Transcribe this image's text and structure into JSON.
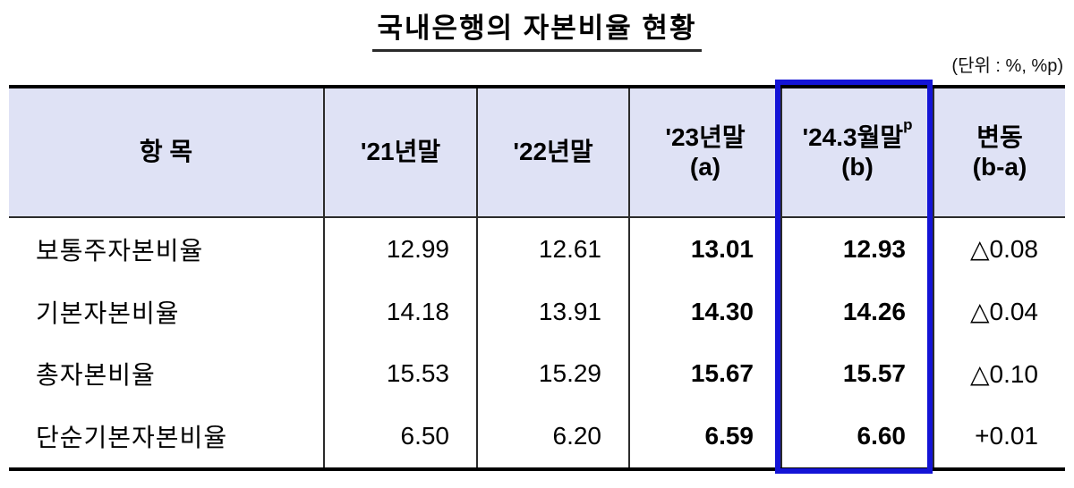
{
  "title": "국내은행의 자본비율 현황",
  "unit_note": "(단위 : %, %p)",
  "table": {
    "columns": [
      {
        "label": "항  목",
        "sup": "",
        "sub": ""
      },
      {
        "label": "'21년말",
        "sup": "",
        "sub": ""
      },
      {
        "label": "'22년말",
        "sup": "",
        "sub": ""
      },
      {
        "label": "'23년말",
        "sup": "",
        "sub": "(a)"
      },
      {
        "label": "'24.3월말",
        "sup": "p",
        "sub": "(b)"
      },
      {
        "label": "변동",
        "sup": "",
        "sub": "(b-a)"
      }
    ],
    "highlighted_column": "'24.3월말(b)",
    "rows": [
      {
        "label": "보통주자본비율",
        "values": [
          "12.99",
          "12.61",
          "13.01",
          "12.93",
          "△0.08"
        ]
      },
      {
        "label": "기본자본비율",
        "values": [
          "14.18",
          "13.91",
          "14.30",
          "14.26",
          "△0.04"
        ]
      },
      {
        "label": "총자본비율",
        "values": [
          "15.53",
          "15.29",
          "15.67",
          "15.57",
          "△0.10"
        ]
      },
      {
        "label": "단순기본자본비율",
        "values": [
          "6.50",
          "6.20",
          "6.59",
          "6.60",
          "+0.01"
        ]
      }
    ],
    "colors": {
      "header_background": "#dfe2f5",
      "highlight_border": "#1414d6",
      "outer_border": "#000000"
    }
  }
}
